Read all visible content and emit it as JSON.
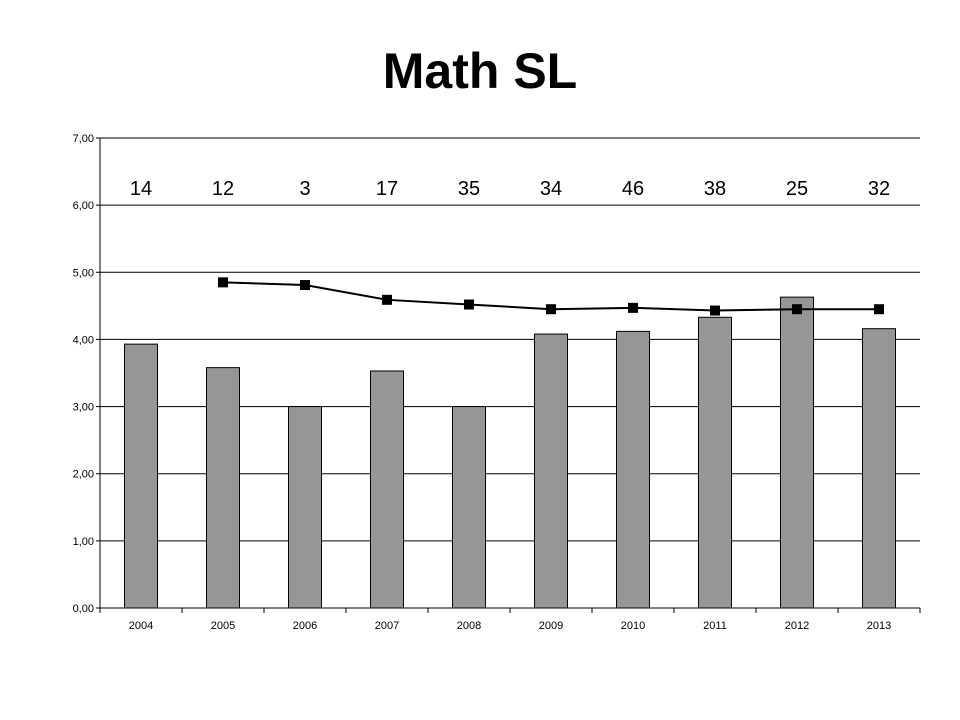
{
  "chart_data": {
    "type": "bar",
    "title": "Math SL",
    "xlabel": "",
    "ylabel": "",
    "ylim": [
      0,
      7
    ],
    "yticks": [
      "0,00",
      "1,00",
      "2,00",
      "3,00",
      "4,00",
      "5,00",
      "6,00",
      "7,00"
    ],
    "categories": [
      "2004",
      "2005",
      "2006",
      "2007",
      "2008",
      "2009",
      "2010",
      "2011",
      "2012",
      "2013"
    ],
    "series": [
      {
        "type": "bar",
        "values": [
          3.93,
          3.58,
          3.0,
          3.53,
          3.0,
          4.08,
          4.12,
          4.33,
          4.63,
          4.16
        ]
      },
      {
        "type": "line",
        "values": [
          null,
          4.85,
          4.81,
          4.59,
          4.52,
          4.45,
          4.47,
          4.43,
          4.45,
          4.45
        ]
      }
    ],
    "top_labels": [
      "14",
      "12",
      "3",
      "17",
      "35",
      "34",
      "46",
      "38",
      "25",
      "32"
    ],
    "grid": true,
    "legend": "none",
    "colors": {
      "bar": "#969696",
      "bar_border": "#000000",
      "line": "#000000",
      "marker": "#000000",
      "grid": "#000000"
    }
  }
}
